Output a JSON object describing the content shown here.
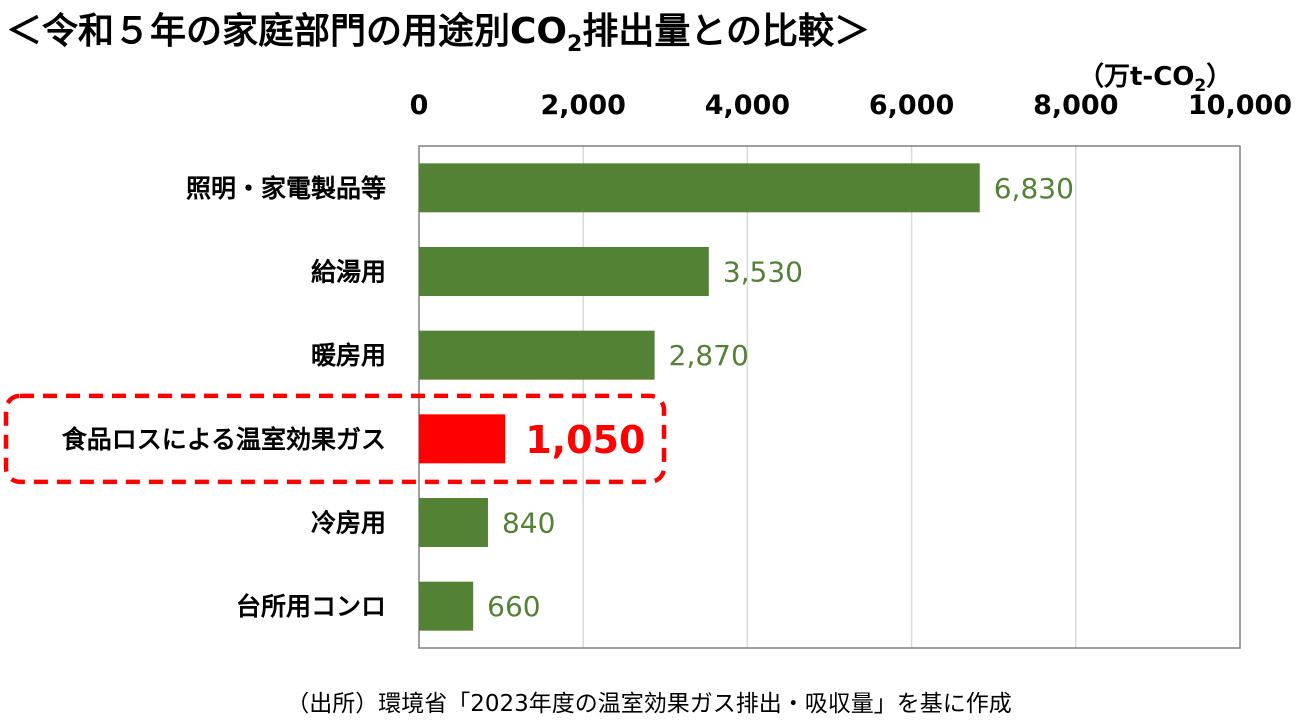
{
  "title": {
    "prefix": "＜令和５年の家庭部門の用途別CO",
    "sub": "2",
    "suffix": "排出量との比較＞"
  },
  "unit": {
    "prefix": "（万t-CO",
    "sub": "2",
    "suffix": "）"
  },
  "source": "（出所）環境省「2023年度の温室効果ガス排出・吸収量」を基に作成",
  "colors": {
    "bar": "#548235",
    "highlight": "#ff0000",
    "grid": "#d9d9d9",
    "axis": "#808080"
  },
  "chart_data": {
    "type": "bar",
    "orientation": "horizontal",
    "categories": [
      "照明・家電製品等",
      "給湯用",
      "暖房用",
      "食品ロスによる温室効果ガス",
      "冷房用",
      "台所用コンロ"
    ],
    "values": [
      6830,
      3530,
      2870,
      1050,
      840,
      660
    ],
    "value_labels": [
      "6,830",
      "3,530",
      "2,870",
      "1,050",
      "840",
      "660"
    ],
    "highlight_index": 3,
    "xlim": [
      0,
      10000
    ],
    "xticks": [
      0,
      2000,
      4000,
      6000,
      8000,
      10000
    ],
    "xtick_labels": [
      "0",
      "2,000",
      "4,000",
      "6,000",
      "8,000",
      "10,000"
    ],
    "axis_position": "top",
    "grid": true
  }
}
